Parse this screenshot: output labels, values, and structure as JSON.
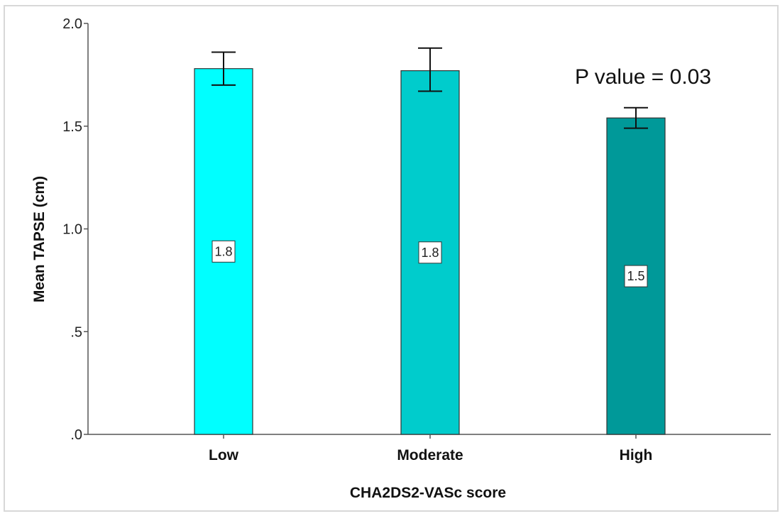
{
  "chart_data": {
    "type": "bar",
    "categories": [
      "Low",
      "Moderate",
      "High"
    ],
    "values": [
      1.78,
      1.77,
      1.54
    ],
    "error_bars": [
      {
        "lower": 1.7,
        "upper": 1.86
      },
      {
        "lower": 1.67,
        "upper": 1.88
      },
      {
        "lower": 1.49,
        "upper": 1.59
      }
    ],
    "data_labels": [
      "1.8",
      "1.8",
      "1.5"
    ],
    "colors": [
      "#00FFFF",
      "#00CCCC",
      "#009999"
    ],
    "ylim": [
      0,
      2.0
    ],
    "yticks": [
      0,
      0.5,
      1.0,
      1.5,
      2.0
    ],
    "ytick_labels": [
      ".0",
      ".5",
      "1.0",
      "1.5",
      "2.0"
    ],
    "xlabel": "CHA2DS2-VASc score",
    "ylabel": "Mean TAPSE (cm)",
    "annotation": "P value = 0.03",
    "grid": false
  }
}
